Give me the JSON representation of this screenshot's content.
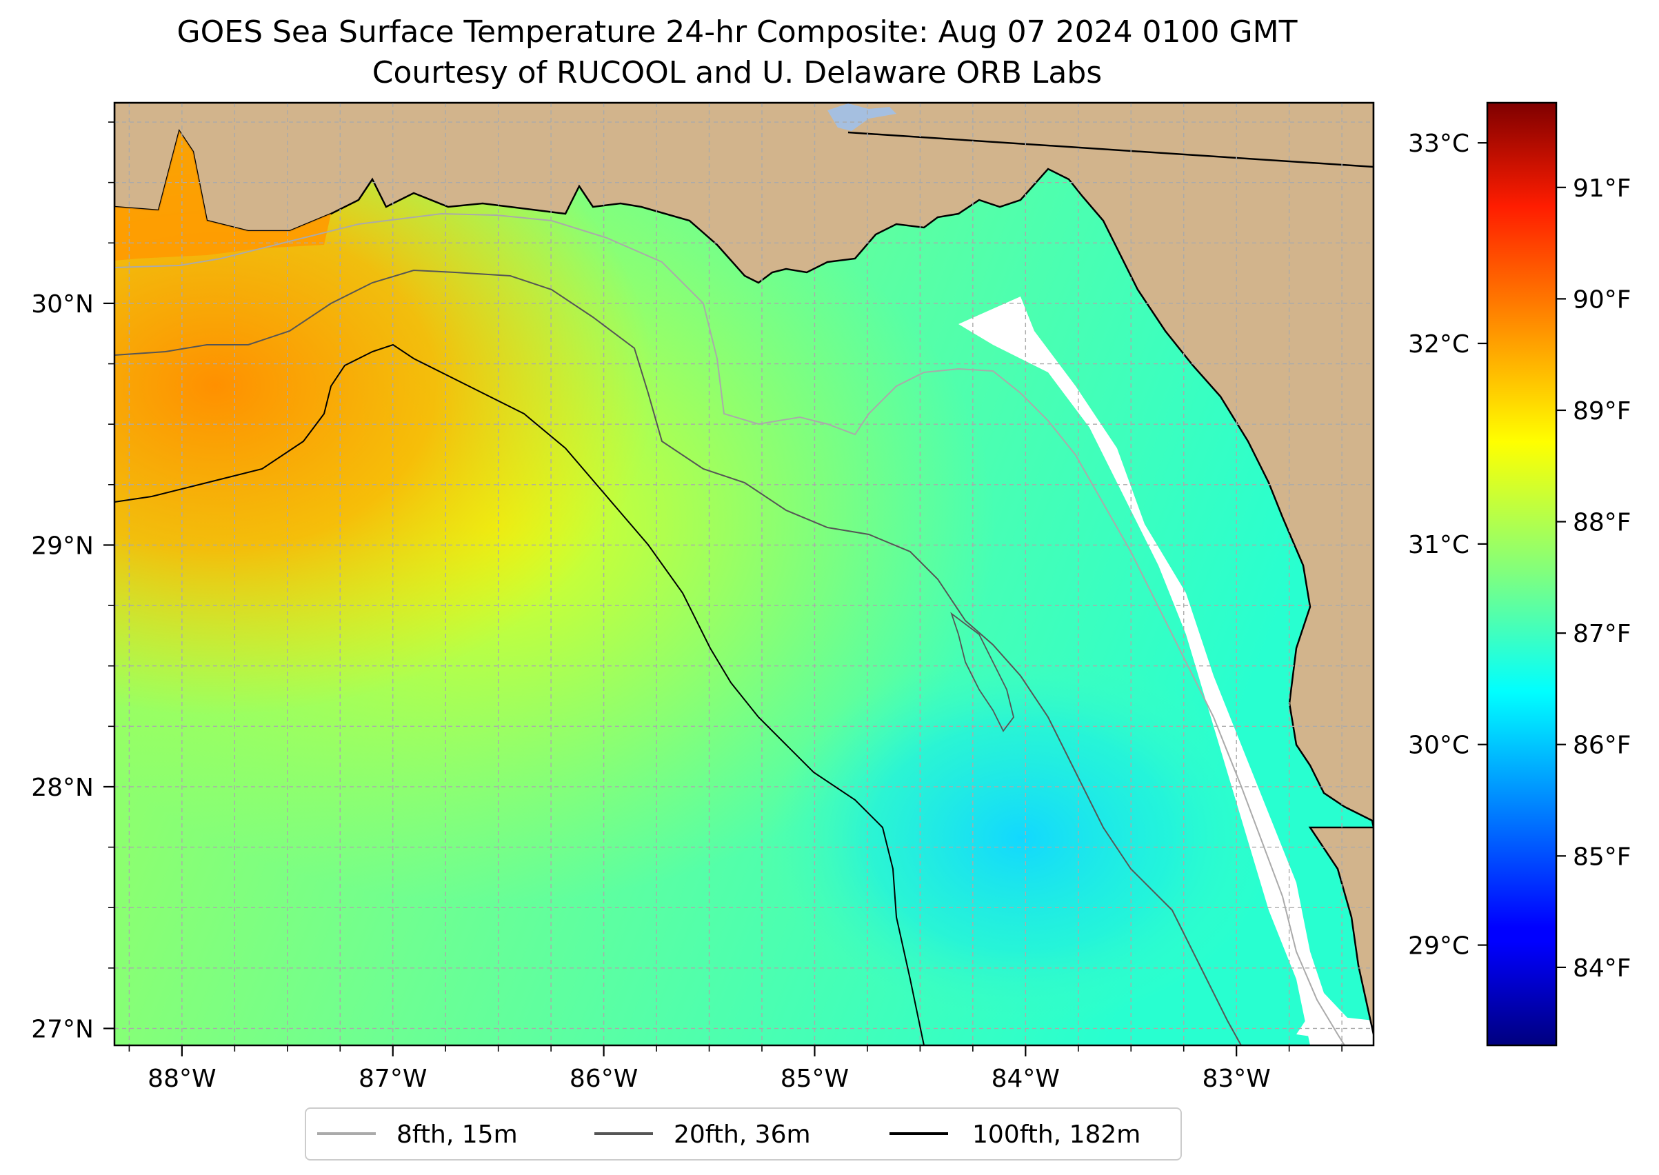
{
  "title": {
    "line1": "GOES Sea Surface Temperature 24-hr Composite: Aug 07 2024 0100 GMT",
    "line2": "Courtesy of RUCOOL and U. Delaware ORB Labs"
  },
  "map": {
    "lon_range": [
      -88.32,
      -82.35
    ],
    "lat_range": [
      26.93,
      30.83
    ],
    "lon_ticks": [
      {
        "value": -88,
        "label": "88°W"
      },
      {
        "value": -87,
        "label": "87°W"
      },
      {
        "value": -86,
        "label": "86°W"
      },
      {
        "value": -85,
        "label": "85°W"
      },
      {
        "value": -84,
        "label": "84°W"
      },
      {
        "value": -83,
        "label": "83°W"
      }
    ],
    "lat_ticks": [
      {
        "value": 27,
        "label": "27°N"
      },
      {
        "value": 28,
        "label": "28°N"
      },
      {
        "value": 29,
        "label": "29°N"
      },
      {
        "value": 30,
        "label": "30°N"
      }
    ],
    "minor_grid_step_deg": 0.25,
    "colors": {
      "land": "#d2b48c",
      "lake": "#a5bfe0",
      "no_data": "#ffffff",
      "grid": "#aaaaaa",
      "coastline": "#000000"
    }
  },
  "colorbar": {
    "colormap": "jet",
    "celsius_range": [
      28.5,
      33.2
    ],
    "celsius_ticks": [
      {
        "value": 29,
        "label": "29°C"
      },
      {
        "value": 30,
        "label": "30°C"
      },
      {
        "value": 31,
        "label": "31°C"
      },
      {
        "value": 32,
        "label": "32°C"
      },
      {
        "value": 33,
        "label": "33°C"
      }
    ],
    "fahrenheit_ticks": [
      {
        "value": 84,
        "label": "84°F"
      },
      {
        "value": 85,
        "label": "85°F"
      },
      {
        "value": 86,
        "label": "86°F"
      },
      {
        "value": 87,
        "label": "87°F"
      },
      {
        "value": 88,
        "label": "88°F"
      },
      {
        "value": 89,
        "label": "89°F"
      },
      {
        "value": 90,
        "label": "90°F"
      },
      {
        "value": 91,
        "label": "91°F"
      }
    ]
  },
  "legend": {
    "items": [
      {
        "label": "8fth, 15m",
        "color": "#aaaaaa"
      },
      {
        "label": "20fth, 36m",
        "color": "#555555"
      },
      {
        "label": "100fth, 182m",
        "color": "#000000"
      }
    ]
  }
}
